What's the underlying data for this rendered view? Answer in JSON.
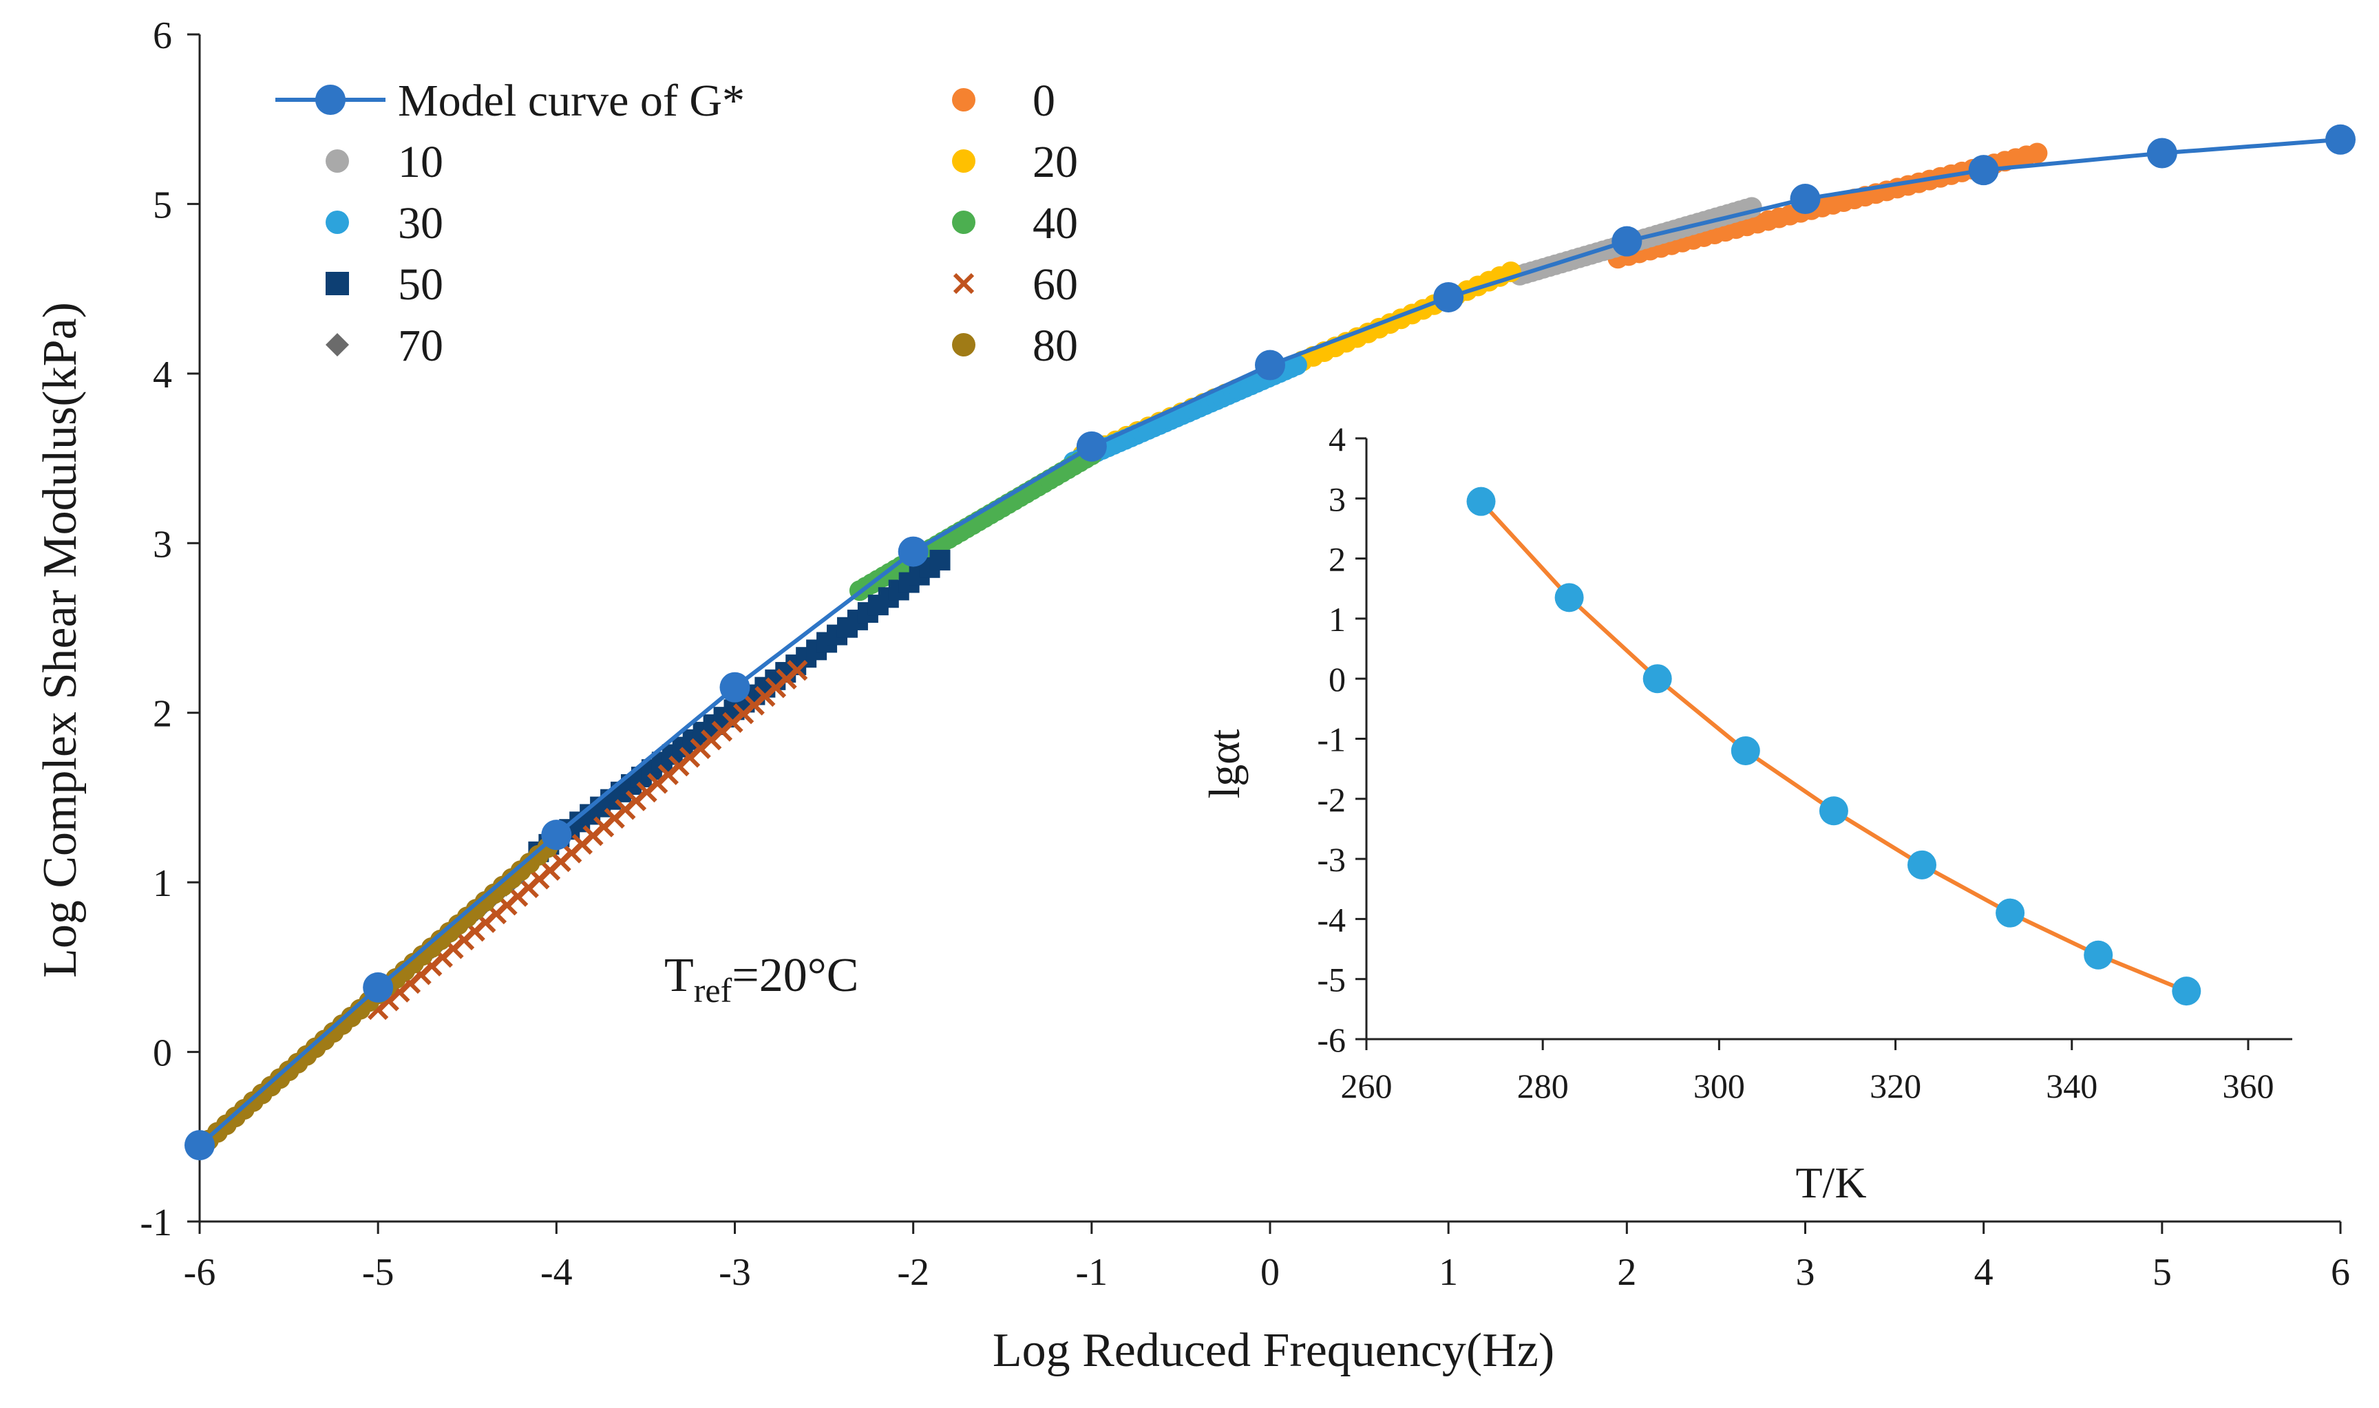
{
  "chart_data": [
    {
      "type": "scatter",
      "title": "",
      "xlabel": "Log Reduced Frequency(Hz)",
      "ylabel": "Log Complex Shear Modulus(kPa)",
      "xlim": [
        -6,
        6
      ],
      "ylim": [
        -1,
        6
      ],
      "xticks": [
        "-6",
        "-5",
        "-4",
        "-3",
        "-2",
        "-1",
        "0",
        "1",
        "2",
        "3",
        "4",
        "5",
        "6"
      ],
      "yticks": [
        "-1",
        "0",
        "1",
        "2",
        "3",
        "4",
        "5",
        "6"
      ],
      "annotation": {
        "main": "T",
        "sub": "ref",
        "rest": "=20°C"
      },
      "legend_position": "top-left",
      "model": {
        "name": "Model curve of G*",
        "color": "#2E75C6",
        "x": [
          -6,
          -5,
          -4,
          -3,
          -2,
          -1,
          0,
          1,
          2,
          3,
          4,
          5,
          6
        ],
        "y": [
          -0.55,
          0.38,
          1.28,
          2.15,
          2.95,
          3.57,
          4.05,
          4.45,
          4.78,
          5.03,
          5.2,
          5.3,
          5.38
        ]
      },
      "series": [
        {
          "name": "0",
          "marker": "circle",
          "color": "#F58230",
          "x_range": [
            1.95,
            4.3
          ],
          "y_range": [
            4.68,
            5.3
          ]
        },
        {
          "name": "10",
          "marker": "circle",
          "color": "#A9A9A9",
          "x_range": [
            1.4,
            2.7
          ],
          "y_range": [
            4.58,
            4.98
          ]
        },
        {
          "name": "20",
          "marker": "circle",
          "color": "#FFC000",
          "x_range": [
            -1.05,
            1.35
          ],
          "y_range": [
            3.52,
            4.6
          ]
        },
        {
          "name": "30",
          "marker": "circle",
          "color": "#2DA3DC",
          "x_range": [
            -1.1,
            0.15
          ],
          "y_range": [
            3.48,
            4.05
          ]
        },
        {
          "name": "40",
          "marker": "circle",
          "color": "#4CAF50",
          "x_range": [
            -2.3,
            -1.0
          ],
          "y_range": [
            2.72,
            3.52
          ]
        },
        {
          "name": "50",
          "marker": "square",
          "color": "#0D3F73",
          "x_range": [
            -4.1,
            -1.85
          ],
          "y_range": [
            1.18,
            2.9
          ]
        },
        {
          "name": "60",
          "marker": "x",
          "color": "#C0531E",
          "x_range": [
            -5.0,
            -2.65
          ],
          "y_range": [
            0.25,
            2.25
          ]
        },
        {
          "name": "70",
          "marker": "diamond",
          "color": "#6B6B6B",
          "x_range": [
            -5.8,
            -4.2
          ],
          "y_range": [
            -0.38,
            1.05
          ]
        },
        {
          "name": "80",
          "marker": "circle",
          "color": "#A07B16",
          "x_range": [
            -5.95,
            -4.0
          ],
          "y_range": [
            -0.52,
            1.25
          ]
        }
      ]
    },
    {
      "type": "line",
      "title": "",
      "xlabel": "T/K",
      "ylabel": "lgαt",
      "xlim": [
        260,
        365
      ],
      "ylim": [
        -6,
        4
      ],
      "xticks": [
        "260",
        "280",
        "300",
        "320",
        "340",
        "360"
      ],
      "yticks": [
        "4",
        "3",
        "2",
        "1",
        "0",
        "-1",
        "-2",
        "-3",
        "-4",
        "-5",
        "-6"
      ],
      "line_color": "#F58230",
      "marker_color": "#2DA3DC",
      "x": [
        273,
        283,
        293,
        303,
        313,
        323,
        333,
        343,
        353
      ],
      "y": [
        2.95,
        1.35,
        0.0,
        -1.2,
        -2.2,
        -3.1,
        -3.9,
        -4.6,
        -5.2
      ]
    }
  ]
}
